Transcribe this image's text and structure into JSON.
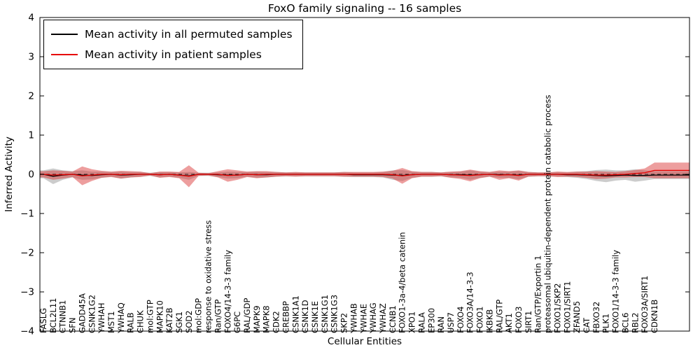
{
  "chart_data": {
    "type": "line",
    "title": "FoxO family signaling -- 16 samples",
    "xlabel": "Cellular Entities",
    "ylabel": "Inferred Activity",
    "ylim": [
      -4,
      4
    ],
    "yticks": [
      -4,
      -3,
      -2,
      -1,
      0,
      1,
      2,
      3,
      4
    ],
    "grid": false,
    "zero_line": true,
    "legend_position": "upper left",
    "categories": [
      "FASLG",
      "BCL2L11",
      "CTNNB1",
      "SFN",
      "GADD45A",
      "CSNK1G2",
      "YWHAH",
      "MST1",
      "YWHAQ",
      "RALB",
      "CHUK",
      "mol:GTP",
      "MAPK10",
      "KAT2B",
      "SGK1",
      "SOD2",
      "mol:GDP",
      "response to oxidative stress",
      "Ran/GTP",
      "FOXO4/14-3-3 family",
      "G6PC",
      "RAL/GDP",
      "MAPK9",
      "MAPK8",
      "CDK2",
      "CREBBP",
      "CSNK1A1",
      "CSNK1D",
      "CSNK1E",
      "CSNK1G1",
      "CSNK1G3",
      "SKP2",
      "YWHAB",
      "YWHAE",
      "YWHAG",
      "YWHAZ",
      "CCNB1",
      "FOXO1-3a-4/beta catenin",
      "XPO1",
      "RALA",
      "EP300",
      "RAN",
      "USP7",
      "FOXO4",
      "FOXO3A/14-3-3",
      "FOXO1",
      "IKBKB",
      "RAL/GTP",
      "AKT1",
      "FOXO3",
      "SIRT1",
      "Ran/GTP/Exportin 1",
      "proteasomal ubiquitin-dependent protein catabolic process",
      "FOXO1/SKP2",
      "FOXO1/SIRT1",
      "ZFAND5",
      "CAT",
      "FBXO32",
      "PLK1",
      "FOXO1/14-3-3 family",
      "BCL6",
      "RBL2",
      "FOXO3A/SIRT1",
      "CDKN1B"
    ],
    "series": [
      {
        "name": "Mean activity in all permuted samples",
        "color": "#000000",
        "band_color": "rgba(128,128,128,0.40)",
        "values": [
          0.0,
          -0.05,
          -0.02,
          0.0,
          -0.02,
          -0.03,
          -0.01,
          0.0,
          -0.02,
          -0.01,
          0.0,
          0.0,
          -0.01,
          0.0,
          -0.02,
          -0.04,
          0.0,
          0.0,
          -0.01,
          -0.02,
          -0.02,
          0.0,
          -0.01,
          -0.01,
          0.0,
          0.0,
          0.0,
          0.0,
          0.0,
          0.0,
          0.0,
          0.0,
          -0.01,
          -0.01,
          -0.01,
          -0.01,
          -0.02,
          -0.03,
          -0.01,
          0.0,
          0.0,
          0.0,
          -0.01,
          -0.01,
          -0.02,
          -0.01,
          0.0,
          -0.01,
          -0.01,
          -0.02,
          0.0,
          0.0,
          0.0,
          0.0,
          -0.01,
          -0.01,
          -0.02,
          -0.03,
          -0.04,
          -0.03,
          -0.02,
          -0.03,
          -0.03,
          -0.02
        ],
        "band_half": [
          0.1,
          0.2,
          0.12,
          0.08,
          0.12,
          0.1,
          0.08,
          0.06,
          0.09,
          0.07,
          0.06,
          0.04,
          0.07,
          0.06,
          0.07,
          0.1,
          0.04,
          0.04,
          0.06,
          0.09,
          0.08,
          0.06,
          0.08,
          0.07,
          0.06,
          0.05,
          0.05,
          0.05,
          0.05,
          0.05,
          0.05,
          0.06,
          0.06,
          0.06,
          0.06,
          0.07,
          0.12,
          0.14,
          0.08,
          0.06,
          0.06,
          0.05,
          0.07,
          0.08,
          0.12,
          0.08,
          0.06,
          0.08,
          0.08,
          0.11,
          0.06,
          0.05,
          0.05,
          0.06,
          0.06,
          0.08,
          0.1,
          0.14,
          0.16,
          0.13,
          0.12,
          0.16,
          0.13,
          0.1
        ]
      },
      {
        "name": "Mean activity in patient samples",
        "color": "#e60000",
        "band_color": "rgba(214,39,40,0.45)",
        "values": [
          0.0,
          -0.02,
          -0.01,
          0.0,
          -0.04,
          -0.02,
          0.0,
          0.0,
          -0.01,
          0.0,
          0.0,
          0.0,
          -0.01,
          0.0,
          -0.02,
          -0.05,
          0.0,
          0.0,
          0.0,
          -0.03,
          -0.02,
          0.0,
          -0.01,
          0.0,
          0.0,
          0.0,
          0.0,
          0.0,
          0.0,
          0.0,
          0.0,
          0.0,
          0.0,
          0.0,
          0.0,
          0.0,
          -0.01,
          -0.04,
          -0.01,
          0.0,
          0.0,
          0.0,
          -0.01,
          -0.02,
          -0.03,
          -0.01,
          0.0,
          -0.02,
          -0.01,
          -0.03,
          0.0,
          0.0,
          0.0,
          0.0,
          0.0,
          0.0,
          -0.01,
          -0.02,
          -0.02,
          -0.01,
          0.0,
          0.02,
          0.04,
          0.1
        ],
        "band_half": [
          0.08,
          0.12,
          0.1,
          0.07,
          0.24,
          0.15,
          0.09,
          0.07,
          0.1,
          0.08,
          0.07,
          0.03,
          0.08,
          0.07,
          0.08,
          0.28,
          0.04,
          0.03,
          0.08,
          0.16,
          0.12,
          0.07,
          0.09,
          0.08,
          0.06,
          0.05,
          0.06,
          0.05,
          0.05,
          0.05,
          0.05,
          0.06,
          0.06,
          0.06,
          0.06,
          0.07,
          0.1,
          0.2,
          0.09,
          0.06,
          0.06,
          0.05,
          0.08,
          0.1,
          0.15,
          0.09,
          0.06,
          0.12,
          0.09,
          0.13,
          0.06,
          0.05,
          0.05,
          0.07,
          0.06,
          0.07,
          0.08,
          0.1,
          0.09,
          0.07,
          0.08,
          0.09,
          0.11,
          0.2
        ]
      }
    ]
  }
}
